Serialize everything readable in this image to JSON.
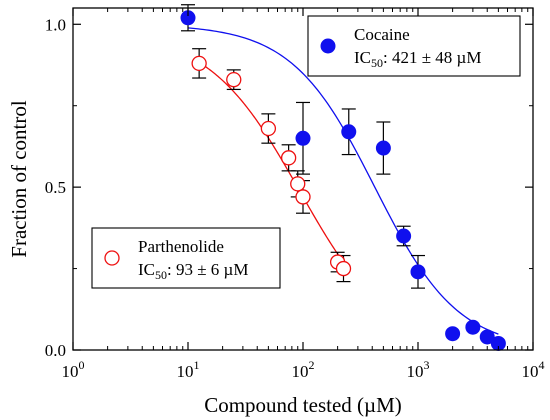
{
  "chart_data": {
    "type": "scatter",
    "xlabel": "Compound tested (µM)",
    "ylabel": "Fraction of control",
    "xscale": "log",
    "xlim": [
      1,
      10000
    ],
    "ylim": [
      0,
      1.05
    ],
    "x_ticks": [
      {
        "value": 1,
        "base": "10",
        "exp": "0"
      },
      {
        "value": 10,
        "base": "10",
        "exp": "1"
      },
      {
        "value": 100,
        "base": "10",
        "exp": "2"
      },
      {
        "value": 1000,
        "base": "10",
        "exp": "3"
      },
      {
        "value": 10000,
        "base": "10",
        "exp": "4"
      }
    ],
    "y_ticks": [
      {
        "value": 0,
        "label": "0.0"
      },
      {
        "value": 0.5,
        "label": "0.5"
      },
      {
        "value": 1.0,
        "label": "1.0"
      }
    ],
    "grid": false,
    "series": [
      {
        "name": "Cocaine",
        "ic50_text": {
          "prefix": "IC",
          "sub": "50",
          "value": ": 421 ± 48 µM"
        },
        "marker": "filled-circle",
        "color": "#1010ee",
        "legend_position": "top-right",
        "points": [
          {
            "x": 10,
            "y": 1.02,
            "err": 0.04
          },
          {
            "x": 100,
            "y": 0.65,
            "err": 0.11
          },
          {
            "x": 250,
            "y": 0.67,
            "err": 0.07
          },
          {
            "x": 500,
            "y": 0.62,
            "err": 0.08
          },
          {
            "x": 750,
            "y": 0.35,
            "err": 0.03
          },
          {
            "x": 1000,
            "y": 0.24,
            "err": 0.05
          },
          {
            "x": 2000,
            "y": 0.05,
            "err": 0
          },
          {
            "x": 3000,
            "y": 0.07,
            "err": 0
          },
          {
            "x": 4000,
            "y": 0.04,
            "err": 0
          },
          {
            "x": 5000,
            "y": 0.02,
            "err": 0
          }
        ],
        "fit": {
          "ic50": 421,
          "top": 1.0,
          "hill": 1.2,
          "x_range": [
            10,
            5000
          ]
        }
      },
      {
        "name": "Parthenolide",
        "ic50_text": {
          "prefix": "IC",
          "sub": "50",
          "value": ": 93 ± 6 µM"
        },
        "marker": "open-circle",
        "color": "#ee1010",
        "legend_position": "bottom-left",
        "points": [
          {
            "x": 12.5,
            "y": 0.88,
            "err": 0.045
          },
          {
            "x": 25,
            "y": 0.83,
            "err": 0.03
          },
          {
            "x": 50,
            "y": 0.68,
            "err": 0.045
          },
          {
            "x": 75,
            "y": 0.59,
            "err": 0.04
          },
          {
            "x": 90,
            "y": 0.51,
            "err": 0.04
          },
          {
            "x": 100,
            "y": 0.47,
            "err": 0.05
          },
          {
            "x": 200,
            "y": 0.27,
            "err": 0.03
          },
          {
            "x": 225,
            "y": 0.25,
            "err": 0.04
          }
        ],
        "fit": {
          "ic50": 93,
          "top": 0.98,
          "hill": 1.1,
          "x_range": [
            12.5,
            250
          ]
        }
      }
    ]
  }
}
